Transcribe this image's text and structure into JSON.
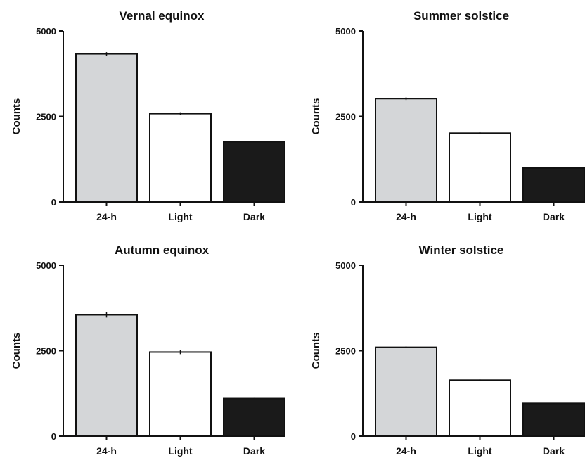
{
  "chart_data": [
    {
      "type": "bar",
      "title": "Vernal equinox",
      "ylabel": "Counts",
      "xlabel": "",
      "categories": [
        "24-h",
        "Light",
        "Dark"
      ],
      "values": [
        4330,
        2580,
        1760
      ],
      "errors": [
        50,
        40,
        20
      ],
      "ylim": [
        0,
        5000
      ],
      "yticks": [
        0,
        2500,
        5000
      ]
    },
    {
      "type": "bar",
      "title": "Summer solstice",
      "ylabel": "Counts",
      "xlabel": "",
      "categories": [
        "24-h",
        "Light",
        "Dark"
      ],
      "values": [
        3020,
        2010,
        990
      ],
      "errors": [
        40,
        35,
        10
      ],
      "ylim": [
        0,
        5000
      ],
      "yticks": [
        0,
        2500,
        5000
      ]
    },
    {
      "type": "bar",
      "title": "Autumn equinox",
      "ylabel": "Counts",
      "xlabel": "",
      "categories": [
        "24-h",
        "Light",
        "Dark"
      ],
      "values": [
        3550,
        2460,
        1100
      ],
      "errors": [
        80,
        60,
        20
      ],
      "ylim": [
        0,
        5000
      ],
      "yticks": [
        0,
        2500,
        5000
      ]
    },
    {
      "type": "bar",
      "title": "Winter solstice",
      "ylabel": "Counts",
      "xlabel": "",
      "categories": [
        "24-h",
        "Light",
        "Dark"
      ],
      "values": [
        2600,
        1640,
        960
      ],
      "errors": [
        25,
        20,
        10
      ],
      "ylim": [
        0,
        5000
      ],
      "yticks": [
        0,
        2500,
        5000
      ]
    }
  ],
  "colors": {
    "bar_24h": "#d4d6d8",
    "bar_light": "#ffffff",
    "bar_dark": "#1a1a1a",
    "stroke": "#111111"
  }
}
